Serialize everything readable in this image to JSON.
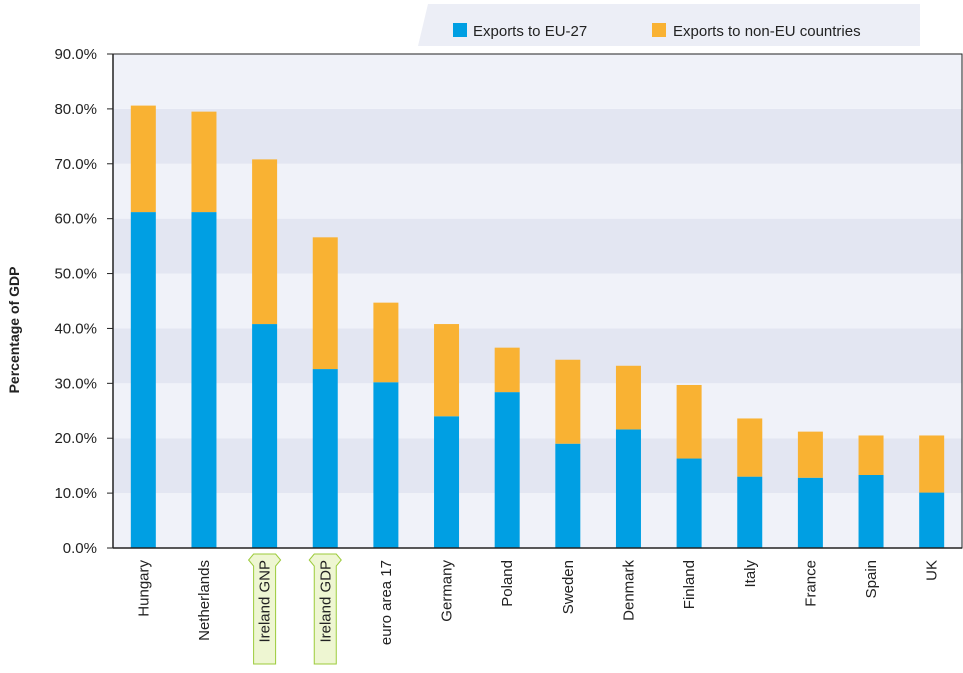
{
  "chart_data": {
    "type": "bar",
    "stacked": true,
    "title": "",
    "xlabel": "",
    "ylabel": "Percentage of GDP",
    "ylim": [
      0,
      90
    ],
    "y_tick_labels": [
      "0.0%",
      "10.0%",
      "20.0%",
      "30.0%",
      "40.0%",
      "50.0%",
      "60.0%",
      "70.0%",
      "80.0%",
      "90.0%"
    ],
    "categories": [
      "Hungary",
      "Netherlands",
      "Ireland GNP",
      "Ireland GDP",
      "euro area 17",
      "Germany",
      "Poland",
      "Sweden",
      "Denmark",
      "Finland",
      "Italy",
      "France",
      "Spain",
      "UK"
    ],
    "highlighted_categories": [
      "Ireland GNP",
      "Ireland GDP"
    ],
    "series": [
      {
        "name": "Exports to EU-27",
        "color": "#009fe3",
        "values": [
          61.2,
          61.2,
          40.8,
          32.6,
          30.2,
          24.0,
          28.4,
          19.0,
          21.6,
          16.3,
          13.0,
          12.8,
          13.3,
          10.1
        ]
      },
      {
        "name": "Exports to non-EU countries",
        "color": "#f9b233",
        "values": [
          19.4,
          18.3,
          30.0,
          24.0,
          14.5,
          16.8,
          8.1,
          15.3,
          11.6,
          13.4,
          10.6,
          8.4,
          7.2,
          10.4
        ]
      }
    ],
    "grid": "alternating horizontal bands",
    "legend_position": "top-right"
  },
  "colors": {
    "band_light": "#f0f2f9",
    "band_dark": "#e3e6f2",
    "highlight_fill": "#eef6d2",
    "highlight_stroke": "#9ccb3b",
    "legend_bg": "#eceef6"
  }
}
